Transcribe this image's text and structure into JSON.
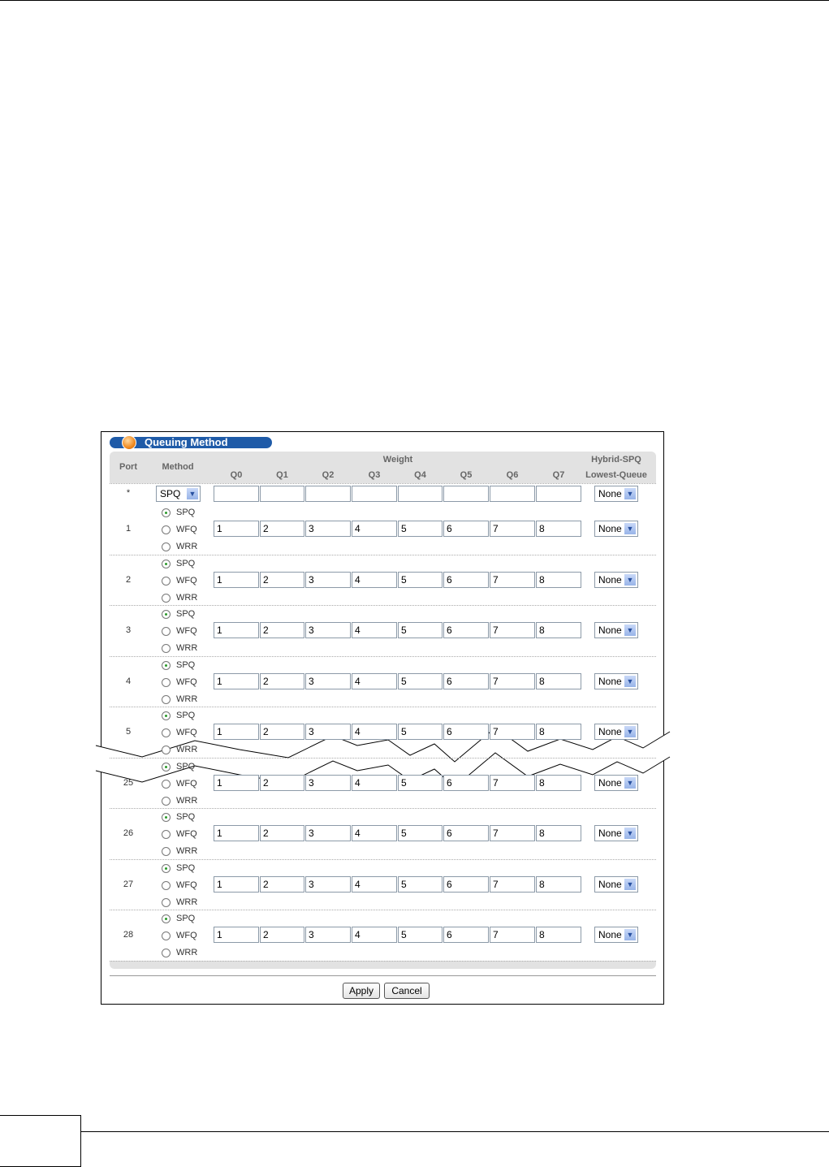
{
  "panel_title": "Queuing Method",
  "headers": {
    "port": "Port",
    "method": "Method",
    "weight": "Weight",
    "queues": [
      "Q0",
      "Q1",
      "Q2",
      "Q3",
      "Q4",
      "Q5",
      "Q6",
      "Q7"
    ],
    "hybrid_line1": "Hybrid-SPQ",
    "hybrid_line2": "Lowest-Queue"
  },
  "all_row": {
    "port": "*",
    "method_select": "SPQ",
    "weights": [
      "",
      "",
      "",
      "",
      "",
      "",
      "",
      ""
    ],
    "lowest_queue": "None"
  },
  "method_options": [
    "SPQ",
    "WFQ",
    "WRR"
  ],
  "rows": [
    {
      "port": "1",
      "method": "SPQ",
      "weights": [
        "1",
        "2",
        "3",
        "4",
        "5",
        "6",
        "7",
        "8"
      ],
      "lowest_queue": "None"
    },
    {
      "port": "2",
      "method": "SPQ",
      "weights": [
        "1",
        "2",
        "3",
        "4",
        "5",
        "6",
        "7",
        "8"
      ],
      "lowest_queue": "None"
    },
    {
      "port": "3",
      "method": "SPQ",
      "weights": [
        "1",
        "2",
        "3",
        "4",
        "5",
        "6",
        "7",
        "8"
      ],
      "lowest_queue": "None"
    },
    {
      "port": "4",
      "method": "SPQ",
      "weights": [
        "1",
        "2",
        "3",
        "4",
        "5",
        "6",
        "7",
        "8"
      ],
      "lowest_queue": "None"
    },
    {
      "port": "5",
      "method": "SPQ",
      "weights": [
        "1",
        "2",
        "3",
        "4",
        "5",
        "6",
        "7",
        "8"
      ],
      "lowest_queue": "None"
    },
    {
      "port": "25",
      "method": "SPQ",
      "weights": [
        "1",
        "2",
        "3",
        "4",
        "5",
        "6",
        "7",
        "8"
      ],
      "lowest_queue": "None"
    },
    {
      "port": "26",
      "method": "SPQ",
      "weights": [
        "1",
        "2",
        "3",
        "4",
        "5",
        "6",
        "7",
        "8"
      ],
      "lowest_queue": "None"
    },
    {
      "port": "27",
      "method": "SPQ",
      "weights": [
        "1",
        "2",
        "3",
        "4",
        "5",
        "6",
        "7",
        "8"
      ],
      "lowest_queue": "None"
    },
    {
      "port": "28",
      "method": "SPQ",
      "weights": [
        "1",
        "2",
        "3",
        "4",
        "5",
        "6",
        "7",
        "8"
      ],
      "lowest_queue": "None"
    }
  ],
  "buttons": {
    "apply": "Apply",
    "cancel": "Cancel"
  },
  "colors": {
    "title_bar": "#1f5ba8",
    "header_bg": "#e2e2e2",
    "radio_selected": "#2a9a2a"
  },
  "icons": {
    "select_arrow": "chevron-down-icon",
    "title_bullet": "orange-ball-icon"
  }
}
